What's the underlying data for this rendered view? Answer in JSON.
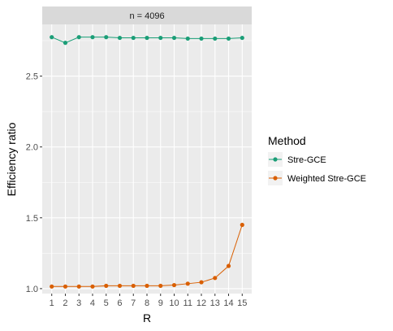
{
  "chart_data": {
    "type": "line",
    "facet_label": "n = 4096",
    "xlabel": "R",
    "ylabel": "Efficiency ratio",
    "x": [
      1,
      2,
      3,
      4,
      5,
      6,
      7,
      8,
      9,
      10,
      11,
      12,
      13,
      14,
      15
    ],
    "xlim": [
      0.3,
      15.7
    ],
    "ylim": [
      0.965,
      2.865
    ],
    "yticks": [
      1.0,
      1.5,
      2.0,
      2.5
    ],
    "ytick_labels": [
      "1.0",
      "1.5",
      "2.0",
      "2.5"
    ],
    "grid": true,
    "legend_title": "Method",
    "legend_position": "right",
    "series": [
      {
        "name": "Stre-GCE",
        "color": "#1b9e77",
        "values": [
          2.775,
          2.735,
          2.775,
          2.775,
          2.775,
          2.77,
          2.77,
          2.77,
          2.77,
          2.77,
          2.765,
          2.765,
          2.765,
          2.765,
          2.77
        ]
      },
      {
        "name": "Weighted Stre-GCE",
        "color": "#d95f02",
        "values": [
          1.015,
          1.015,
          1.015,
          1.015,
          1.02,
          1.02,
          1.02,
          1.02,
          1.02,
          1.025,
          1.035,
          1.045,
          1.075,
          1.16,
          1.45
        ]
      }
    ]
  }
}
